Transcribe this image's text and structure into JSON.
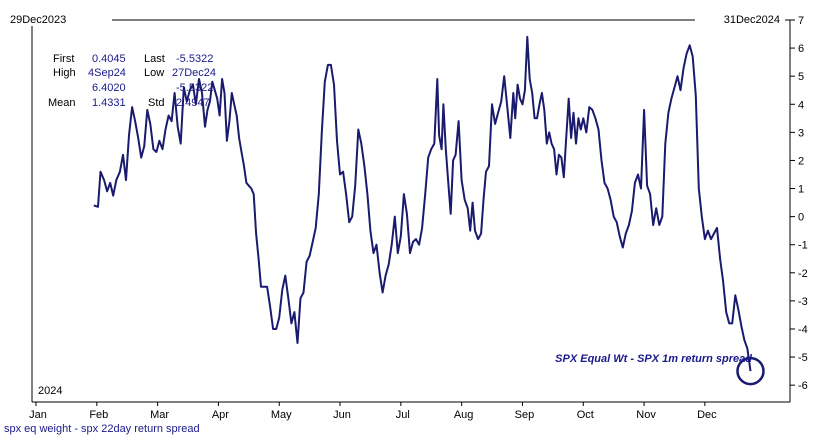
{
  "header": {
    "start_date": "29Dec2023",
    "end_date": "31Dec2024"
  },
  "stats": {
    "first_label": "First",
    "first_value": "0.4045",
    "last_label": "Last",
    "last_value": "-5.5322",
    "high_label": "High",
    "high_date": "4Sep24",
    "high_value": "6.4020",
    "low_label": "Low",
    "low_date": "27Dec24",
    "low_value": "-5.5322",
    "mean_label": "Mean",
    "mean_value": "1.4331",
    "std_label": "Std",
    "std_value": "2.4947"
  },
  "year_label": "2024",
  "footer_label": "spx eq weight - spx 22day return spread",
  "annotation": "SPX Equal Wt - SPX 1m return spread",
  "colors": {
    "line": "#1a1a6e",
    "text": "#1a1a8c",
    "axis": "#000000"
  },
  "chart_data": {
    "type": "line",
    "x_unit": "month",
    "x_tick_labels": [
      "Jan",
      "Feb",
      "Mar",
      "Apr",
      "May",
      "Jun",
      "Jul",
      "Aug",
      "Sep",
      "Oct",
      "Nov",
      "Dec"
    ],
    "y_ticks": [
      7,
      6,
      5,
      4,
      3,
      2,
      1,
      0,
      -1,
      -2,
      -3,
      -4,
      -5,
      -6
    ],
    "ylim": [
      -6.6,
      7
    ],
    "xlim": [
      0,
      12.4
    ],
    "y_axis_position": "right",
    "grid": false,
    "series": [
      {
        "name": "SPX Equal Wt - SPX 1m return spread",
        "points": [
          [
            0.95,
            0.4
          ],
          [
            1.02,
            0.35
          ],
          [
            1.06,
            1.6
          ],
          [
            1.12,
            1.3
          ],
          [
            1.17,
            0.9
          ],
          [
            1.22,
            1.2
          ],
          [
            1.27,
            0.75
          ],
          [
            1.32,
            1.3
          ],
          [
            1.38,
            1.6
          ],
          [
            1.43,
            2.2
          ],
          [
            1.48,
            1.3
          ],
          [
            1.53,
            2.9
          ],
          [
            1.58,
            3.9
          ],
          [
            1.63,
            3.4
          ],
          [
            1.68,
            2.8
          ],
          [
            1.73,
            2.1
          ],
          [
            1.78,
            2.5
          ],
          [
            1.83,
            3.8
          ],
          [
            1.88,
            3.3
          ],
          [
            1.93,
            2.4
          ],
          [
            1.98,
            2.3
          ],
          [
            2.03,
            2.7
          ],
          [
            2.08,
            2.4
          ],
          [
            2.13,
            3.1
          ],
          [
            2.18,
            3.6
          ],
          [
            2.23,
            3.4
          ],
          [
            2.28,
            4.4
          ],
          [
            2.33,
            3.2
          ],
          [
            2.38,
            2.6
          ],
          [
            2.43,
            4.6
          ],
          [
            2.48,
            4.1
          ],
          [
            2.53,
            4.5
          ],
          [
            2.58,
            4.7
          ],
          [
            2.63,
            4.0
          ],
          [
            2.68,
            4.9
          ],
          [
            2.73,
            4.4
          ],
          [
            2.78,
            3.2
          ],
          [
            2.82,
            3.8
          ],
          [
            2.86,
            4.1
          ],
          [
            2.9,
            4.8
          ],
          [
            2.94,
            4.5
          ],
          [
            2.98,
            4.2
          ],
          [
            3.02,
            3.6
          ],
          [
            3.06,
            4.9
          ],
          [
            3.1,
            4.4
          ],
          [
            3.14,
            2.7
          ],
          [
            3.18,
            3.4
          ],
          [
            3.22,
            4.4
          ],
          [
            3.26,
            4.0
          ],
          [
            3.3,
            3.6
          ],
          [
            3.34,
            2.8
          ],
          [
            3.38,
            2.3
          ],
          [
            3.42,
            1.8
          ],
          [
            3.46,
            1.2
          ],
          [
            3.5,
            1.1
          ],
          [
            3.54,
            1.0
          ],
          [
            3.58,
            0.8
          ],
          [
            3.62,
            -0.6
          ],
          [
            3.66,
            -1.5
          ],
          [
            3.7,
            -2.5
          ],
          [
            3.75,
            -2.5
          ],
          [
            3.8,
            -2.5
          ],
          [
            3.85,
            -3.2
          ],
          [
            3.9,
            -4.0
          ],
          [
            3.95,
            -4.0
          ],
          [
            4.0,
            -3.6
          ],
          [
            4.05,
            -2.6
          ],
          [
            4.1,
            -2.1
          ],
          [
            4.15,
            -2.9
          ],
          [
            4.2,
            -3.8
          ],
          [
            4.25,
            -3.4
          ],
          [
            4.3,
            -4.5
          ],
          [
            4.35,
            -2.9
          ],
          [
            4.4,
            -2.7
          ],
          [
            4.45,
            -1.6
          ],
          [
            4.5,
            -1.4
          ],
          [
            4.55,
            -0.9
          ],
          [
            4.6,
            -0.4
          ],
          [
            4.65,
            0.8
          ],
          [
            4.7,
            3.0
          ],
          [
            4.75,
            4.8
          ],
          [
            4.8,
            5.4
          ],
          [
            4.85,
            5.4
          ],
          [
            4.9,
            4.7
          ],
          [
            4.95,
            2.7
          ],
          [
            5.0,
            1.5
          ],
          [
            5.05,
            1.6
          ],
          [
            5.1,
            0.8
          ],
          [
            5.15,
            -0.2
          ],
          [
            5.2,
            0.0
          ],
          [
            5.25,
            1.1
          ],
          [
            5.3,
            3.1
          ],
          [
            5.35,
            2.6
          ],
          [
            5.4,
            1.8
          ],
          [
            5.45,
            0.8
          ],
          [
            5.5,
            -0.5
          ],
          [
            5.55,
            -1.3
          ],
          [
            5.6,
            -1.0
          ],
          [
            5.65,
            -2.0
          ],
          [
            5.7,
            -2.7
          ],
          [
            5.75,
            -2.1
          ],
          [
            5.8,
            -1.7
          ],
          [
            5.85,
            -1.0
          ],
          [
            5.9,
            0.0
          ],
          [
            5.95,
            -1.3
          ],
          [
            6.0,
            -0.7
          ],
          [
            6.05,
            0.8
          ],
          [
            6.1,
            0.1
          ],
          [
            6.15,
            -1.3
          ],
          [
            6.2,
            -0.9
          ],
          [
            6.25,
            -0.8
          ],
          [
            6.3,
            -1.0
          ],
          [
            6.35,
            -0.4
          ],
          [
            6.4,
            0.8
          ],
          [
            6.45,
            2.1
          ],
          [
            6.5,
            2.4
          ],
          [
            6.55,
            2.6
          ],
          [
            6.6,
            4.9
          ],
          [
            6.63,
            2.9
          ],
          [
            6.67,
            2.4
          ],
          [
            6.7,
            4.0
          ],
          [
            6.74,
            2.4
          ],
          [
            6.78,
            1.2
          ],
          [
            6.82,
            0.1
          ],
          [
            6.86,
            2.0
          ],
          [
            6.9,
            2.2
          ],
          [
            6.95,
            3.4
          ],
          [
            7.0,
            1.3
          ],
          [
            7.05,
            0.6
          ],
          [
            7.1,
            0.3
          ],
          [
            7.14,
            -0.5
          ],
          [
            7.18,
            0.5
          ],
          [
            7.22,
            -0.5
          ],
          [
            7.27,
            -0.8
          ],
          [
            7.32,
            -0.6
          ],
          [
            7.36,
            0.6
          ],
          [
            7.4,
            1.6
          ],
          [
            7.45,
            1.8
          ],
          [
            7.5,
            4.0
          ],
          [
            7.55,
            3.3
          ],
          [
            7.6,
            3.7
          ],
          [
            7.65,
            4.1
          ],
          [
            7.7,
            5.0
          ],
          [
            7.75,
            3.9
          ],
          [
            7.8,
            2.8
          ],
          [
            7.85,
            4.4
          ],
          [
            7.88,
            3.5
          ],
          [
            7.92,
            4.7
          ],
          [
            7.96,
            4.2
          ],
          [
            8.0,
            4.0
          ],
          [
            8.04,
            4.5
          ],
          [
            8.08,
            6.4
          ],
          [
            8.12,
            4.9
          ],
          [
            8.16,
            4.4
          ],
          [
            8.2,
            3.5
          ],
          [
            8.24,
            3.5
          ],
          [
            8.28,
            4.0
          ],
          [
            8.32,
            4.4
          ],
          [
            8.36,
            3.8
          ],
          [
            8.4,
            2.6
          ],
          [
            8.44,
            3.0
          ],
          [
            8.48,
            2.6
          ],
          [
            8.52,
            2.4
          ],
          [
            8.56,
            1.5
          ],
          [
            8.6,
            2.2
          ],
          [
            8.64,
            2.1
          ],
          [
            8.68,
            1.4
          ],
          [
            8.72,
            2.8
          ],
          [
            8.76,
            4.2
          ],
          [
            8.8,
            2.8
          ],
          [
            8.84,
            3.7
          ],
          [
            8.88,
            2.6
          ],
          [
            8.92,
            3.5
          ],
          [
            8.96,
            3.1
          ],
          [
            9.0,
            3.5
          ],
          [
            9.05,
            3.0
          ],
          [
            9.1,
            3.9
          ],
          [
            9.15,
            3.8
          ],
          [
            9.2,
            3.5
          ],
          [
            9.25,
            3.1
          ],
          [
            9.3,
            2.0
          ],
          [
            9.35,
            1.2
          ],
          [
            9.4,
            1.0
          ],
          [
            9.45,
            0.6
          ],
          [
            9.5,
            0.0
          ],
          [
            9.55,
            -0.2
          ],
          [
            9.6,
            -0.7
          ],
          [
            9.65,
            -1.1
          ],
          [
            9.7,
            -0.6
          ],
          [
            9.75,
            -0.3
          ],
          [
            9.8,
            0.2
          ],
          [
            9.85,
            1.2
          ],
          [
            9.9,
            1.5
          ],
          [
            9.95,
            1.0
          ],
          [
            10.0,
            3.8
          ],
          [
            10.05,
            1.1
          ],
          [
            10.1,
            0.8
          ],
          [
            10.15,
            -0.3
          ],
          [
            10.2,
            0.3
          ],
          [
            10.25,
            -0.3
          ],
          [
            10.3,
            0.0
          ],
          [
            10.35,
            2.6
          ],
          [
            10.4,
            3.7
          ],
          [
            10.45,
            4.2
          ],
          [
            10.5,
            4.6
          ],
          [
            10.55,
            5.0
          ],
          [
            10.6,
            4.5
          ],
          [
            10.65,
            5.3
          ],
          [
            10.7,
            5.8
          ],
          [
            10.75,
            6.1
          ],
          [
            10.8,
            5.7
          ],
          [
            10.85,
            4.3
          ],
          [
            10.9,
            1.0
          ],
          [
            10.95,
            0.0
          ],
          [
            11.0,
            -0.8
          ],
          [
            11.05,
            -0.5
          ],
          [
            11.1,
            -0.8
          ],
          [
            11.15,
            -0.6
          ],
          [
            11.2,
            -0.4
          ],
          [
            11.25,
            -1.5
          ],
          [
            11.3,
            -2.3
          ],
          [
            11.35,
            -3.4
          ],
          [
            11.4,
            -3.8
          ],
          [
            11.45,
            -3.8
          ],
          [
            11.5,
            -2.8
          ],
          [
            11.55,
            -3.3
          ],
          [
            11.6,
            -3.9
          ],
          [
            11.65,
            -4.4
          ],
          [
            11.7,
            -4.7
          ],
          [
            11.75,
            -5.5
          ]
        ]
      }
    ]
  }
}
